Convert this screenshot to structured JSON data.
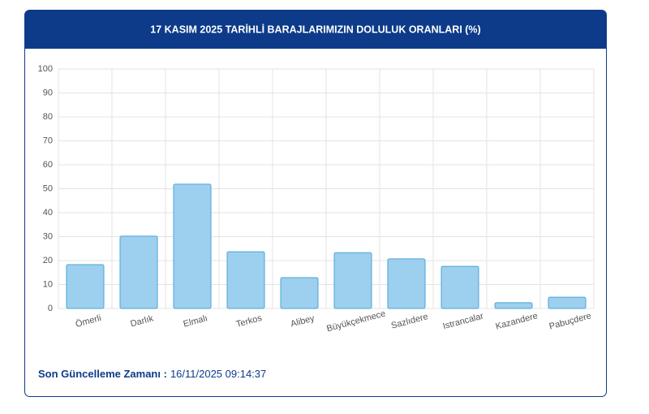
{
  "chart_data": {
    "type": "bar",
    "title": "17 KASIM 2025 TARİHLİ BARAJLARIMIZIN DOLULUK ORANLARI (%)",
    "categories": [
      "Ömerli",
      "Darlık",
      "Elmalı",
      "Terkos",
      "Alibey",
      "Büyükçekmece",
      "Sazlıdere",
      "Istrancalar",
      "Kazandere",
      "Pabuçdere"
    ],
    "values": [
      18.3,
      30.2,
      51.9,
      23.7,
      12.9,
      23.3,
      20.7,
      17.6,
      2.4,
      4.7
    ],
    "color": "#9dd0ee",
    "ylim": [
      0,
      100
    ],
    "yticks": [
      0,
      10,
      20,
      30,
      40,
      50,
      60,
      70,
      80,
      90,
      100
    ],
    "grid": true
  },
  "footer": {
    "label": "Son Güncelleme Zamanı :",
    "time": "16/11/2025 09:14:37"
  }
}
